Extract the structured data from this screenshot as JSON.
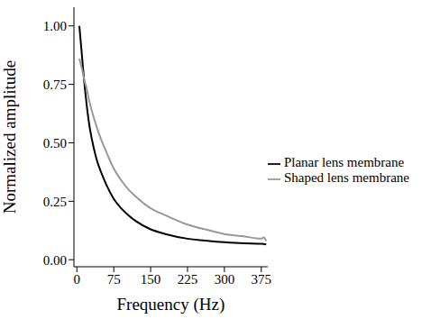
{
  "chart_data": {
    "type": "line",
    "x_label": "Frequency (Hz)",
    "y_label": "Normalized amplitude",
    "x": [
      5,
      10,
      15,
      20,
      25,
      30,
      40,
      50,
      60,
      75,
      90,
      105,
      120,
      150,
      180,
      225,
      270,
      300,
      340,
      375,
      380,
      385
    ],
    "series": [
      {
        "name": "Planar lens membrane",
        "color": "#000000",
        "values": [
          1.0,
          0.88,
          0.76,
          0.66,
          0.58,
          0.52,
          0.43,
          0.37,
          0.32,
          0.26,
          0.22,
          0.19,
          0.165,
          0.13,
          0.11,
          0.09,
          0.08,
          0.075,
          0.07,
          0.068,
          0.067,
          0.065
        ]
      },
      {
        "name": "Shaped lens membrane",
        "color": "#999999",
        "values": [
          0.86,
          0.82,
          0.77,
          0.73,
          0.68,
          0.64,
          0.57,
          0.51,
          0.46,
          0.39,
          0.34,
          0.3,
          0.27,
          0.22,
          0.19,
          0.15,
          0.125,
          0.11,
          0.1,
          0.09,
          0.095,
          0.08
        ]
      }
    ],
    "xlim": [
      -6,
      388
    ],
    "xticks": [
      0,
      75,
      150,
      225,
      300,
      375
    ],
    "ylim": [
      -0.03,
      1.08
    ],
    "yticks": [
      {
        "value": 0,
        "label": "0.00"
      },
      {
        "value": 0.25,
        "label": "0.25"
      },
      {
        "value": 0.5,
        "label": "0.50"
      },
      {
        "value": 0.75,
        "label": "0.75"
      },
      {
        "value": 1.0,
        "label": "1.00"
      }
    ],
    "legend": "right",
    "grid": false
  }
}
